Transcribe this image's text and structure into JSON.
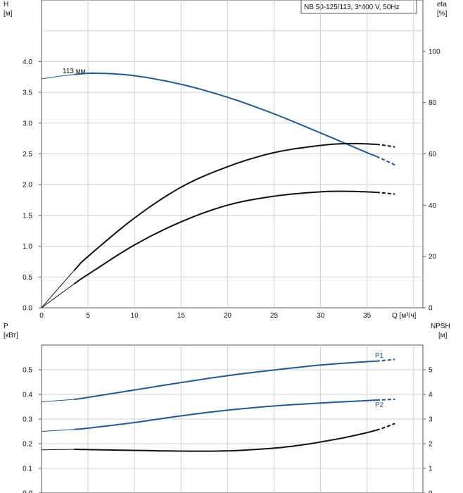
{
  "chart_data": [
    {
      "type": "line",
      "title": "NB 50-125/113, 3*400 V, 50Hz",
      "xlabel": "Q [м³/ч]",
      "x_ticks": [
        "0",
        "5",
        "10",
        "15",
        "20",
        "25",
        "30",
        "35"
      ],
      "xlim": [
        0,
        41
      ],
      "ylabel_left": [
        "H",
        "[м]"
      ],
      "ylim_left": [
        0,
        5
      ],
      "y_ticks_left": [
        "0.0",
        "0.5",
        "1.0",
        "1.5",
        "2.0",
        "2.5",
        "3.0",
        "3.5",
        "4.0"
      ],
      "ylabel_right": [
        "eta",
        "[%]"
      ],
      "ylim_right": [
        0,
        120
      ],
      "y_ticks_right": [
        "0",
        "20",
        "40",
        "60",
        "80",
        "100"
      ],
      "grid": true,
      "annotations": [
        {
          "text": "113 мм"
        }
      ],
      "series": [
        {
          "name": "113 мм",
          "axis": "left",
          "color": "#1f5a94",
          "x": [
            0,
            3.5,
            6,
            10,
            15,
            20,
            25,
            30,
            35,
            36,
            38
          ],
          "y": [
            3.72,
            3.79,
            3.81,
            3.77,
            3.63,
            3.42,
            3.15,
            2.84,
            2.52,
            2.46,
            2.32
          ],
          "solid_range": [
            3.5,
            36
          ]
        },
        {
          "axis": "right",
          "color": "#111111",
          "x": [
            0,
            3.5,
            5,
            10,
            15,
            20,
            25,
            30,
            33,
            36,
            38
          ],
          "y": [
            0,
            14.5,
            20,
            35,
            47,
            55,
            60.5,
            63.3,
            64,
            63.7,
            62.7
          ],
          "solid_range": [
            3.5,
            36
          ]
        },
        {
          "axis": "right",
          "color": "#111111",
          "x": [
            0,
            3.5,
            5,
            10,
            15,
            20,
            25,
            30,
            33,
            36,
            38
          ],
          "y": [
            0,
            9.3,
            13,
            24.5,
            33.5,
            40,
            43.5,
            45.2,
            45.4,
            45.0,
            44.3
          ],
          "solid_range": [
            3.5,
            36
          ]
        }
      ]
    },
    {
      "type": "line",
      "xlim": [
        0,
        41
      ],
      "ylabel_left": [
        "P",
        "[кВт]"
      ],
      "ylim_left": [
        0,
        0.6
      ],
      "y_ticks_left": [
        "0.0",
        "0.1",
        "0.2",
        "0.3",
        "0.4",
        "0.5"
      ],
      "ylabel_right": [
        "NPSH",
        "[м]"
      ],
      "ylim_right": [
        0,
        6
      ],
      "y_ticks_right": [
        "0",
        "1",
        "2",
        "3",
        "4",
        "5"
      ],
      "grid": true,
      "series": [
        {
          "name": "P1",
          "axis": "left",
          "color": "#1f5a94",
          "x": [
            0,
            3.5,
            5,
            10,
            15,
            20,
            25,
            30,
            35,
            36,
            38
          ],
          "y": [
            0.37,
            0.38,
            0.388,
            0.418,
            0.448,
            0.476,
            0.499,
            0.519,
            0.533,
            0.535,
            0.542
          ],
          "solid_range": [
            3.5,
            36
          ]
        },
        {
          "name": "P2",
          "axis": "left",
          "color": "#1f5a94",
          "x": [
            0,
            3.5,
            5,
            10,
            15,
            20,
            25,
            30,
            35,
            36,
            38
          ],
          "y": [
            0.25,
            0.258,
            0.263,
            0.286,
            0.313,
            0.336,
            0.353,
            0.365,
            0.375,
            0.377,
            0.38
          ],
          "solid_range": [
            3.5,
            36
          ]
        },
        {
          "axis": "right",
          "color": "#111111",
          "x": [
            0,
            3.5,
            5,
            10,
            15,
            20,
            25,
            28,
            30,
            33,
            36,
            38
          ],
          "y": [
            1.75,
            1.77,
            1.76,
            1.73,
            1.7,
            1.71,
            1.82,
            1.95,
            2.07,
            2.28,
            2.55,
            2.82
          ],
          "solid_range": [
            3.5,
            36
          ]
        }
      ]
    }
  ]
}
